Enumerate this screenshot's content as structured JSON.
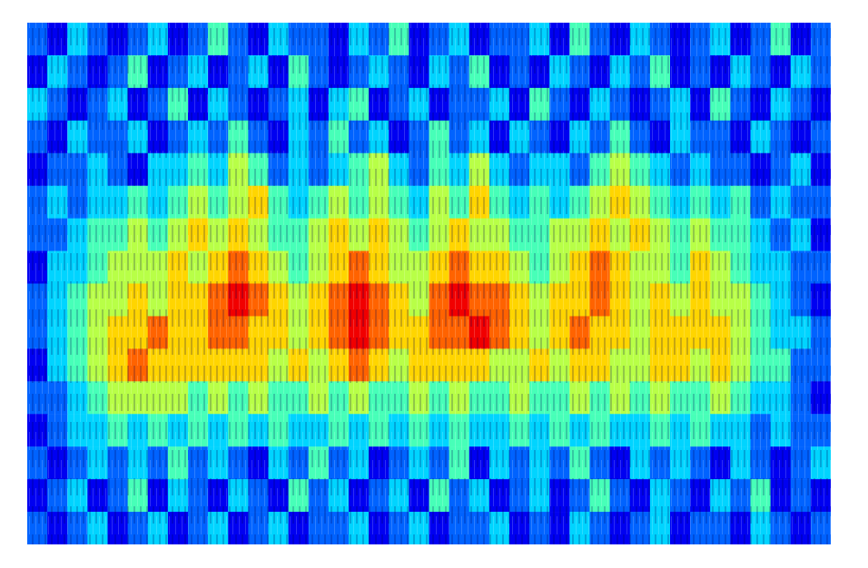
{
  "chart_data": {
    "type": "heatmap",
    "tick_labels": false,
    "color_range": [
      0,
      9
    ],
    "cells": [
      [
        2,
        1,
        3,
        2,
        1,
        2,
        3,
        1,
        2,
        4,
        2,
        1,
        3,
        2,
        2,
        1,
        3,
        2,
        4,
        1,
        2,
        3,
        1,
        2,
        2,
        3,
        1,
        4,
        2,
        1,
        3,
        2,
        1,
        2,
        3,
        1,
        2,
        4,
        1,
        2
      ],
      [
        1,
        3,
        2,
        1,
        2,
        4,
        1,
        2,
        3,
        1,
        2,
        3,
        1,
        4,
        2,
        1,
        2,
        3,
        2,
        1,
        3,
        2,
        4,
        1,
        2,
        1,
        3,
        2,
        1,
        3,
        2,
        4,
        1,
        2,
        1,
        3,
        2,
        1,
        3,
        2
      ],
      [
        3,
        2,
        1,
        2,
        3,
        1,
        2,
        4,
        1,
        3,
        2,
        1,
        2,
        3,
        1,
        3,
        4,
        1,
        2,
        3,
        1,
        2,
        2,
        3,
        1,
        4,
        2,
        1,
        3,
        2,
        1,
        2,
        3,
        1,
        4,
        2,
        1,
        3,
        2,
        1
      ],
      [
        2,
        1,
        3,
        2,
        2,
        3,
        1,
        2,
        3,
        2,
        4,
        2,
        1,
        3,
        2,
        4,
        2,
        3,
        1,
        2,
        4,
        2,
        3,
        1,
        3,
        2,
        1,
        3,
        2,
        4,
        2,
        1,
        3,
        2,
        2,
        1,
        3,
        2,
        1,
        2
      ],
      [
        1,
        2,
        2,
        3,
        2,
        1,
        3,
        3,
        4,
        3,
        5,
        4,
        2,
        3,
        2,
        3,
        4,
        5,
        3,
        2,
        4,
        3,
        5,
        3,
        2,
        3,
        3,
        2,
        4,
        5,
        4,
        3,
        2,
        3,
        2,
        2,
        1,
        2,
        3,
        1
      ],
      [
        2,
        3,
        2,
        3,
        3,
        4,
        3,
        4,
        5,
        4,
        5,
        6,
        4,
        3,
        4,
        5,
        4,
        5,
        4,
        3,
        5,
        4,
        6,
        4,
        3,
        4,
        3,
        4,
        5,
        6,
        5,
        4,
        3,
        4,
        3,
        4,
        2,
        3,
        2,
        2
      ],
      [
        2,
        2,
        3,
        4,
        4,
        5,
        4,
        5,
        6,
        5,
        6,
        5,
        4,
        4,
        5,
        6,
        5,
        6,
        5,
        4,
        5,
        6,
        5,
        5,
        4,
        4,
        5,
        5,
        6,
        5,
        6,
        5,
        4,
        5,
        4,
        4,
        3,
        2,
        3,
        1
      ],
      [
        1,
        3,
        3,
        4,
        5,
        5,
        5,
        6,
        5,
        6,
        7,
        6,
        5,
        4,
        5,
        6,
        7,
        6,
        5,
        5,
        6,
        7,
        6,
        6,
        5,
        4,
        5,
        6,
        7,
        6,
        5,
        5,
        4,
        6,
        5,
        4,
        3,
        3,
        2,
        2
      ],
      [
        2,
        3,
        4,
        5,
        5,
        6,
        5,
        6,
        6,
        7,
        8,
        7,
        6,
        5,
        6,
        7,
        8,
        7,
        6,
        5,
        7,
        8,
        7,
        7,
        6,
        5,
        6,
        6,
        7,
        6,
        5,
        6,
        5,
        6,
        5,
        5,
        4,
        3,
        2,
        1
      ],
      [
        2,
        3,
        4,
        5,
        6,
        6,
        7,
        6,
        6,
        7,
        7,
        6,
        6,
        5,
        6,
        7,
        8,
        7,
        6,
        6,
        7,
        7,
        8,
        7,
        6,
        5,
        6,
        7,
        6,
        6,
        5,
        6,
        6,
        6,
        6,
        5,
        4,
        3,
        3,
        2
      ],
      [
        1,
        3,
        4,
        5,
        6,
        7,
        6,
        6,
        6,
        6,
        6,
        6,
        5,
        6,
        5,
        6,
        7,
        6,
        5,
        6,
        6,
        6,
        6,
        5,
        5,
        6,
        5,
        6,
        6,
        5,
        5,
        6,
        6,
        5,
        6,
        5,
        4,
        4,
        2,
        2
      ],
      [
        2,
        2,
        3,
        4,
        5,
        5,
        5,
        5,
        4,
        5,
        4,
        5,
        4,
        4,
        5,
        4,
        5,
        4,
        4,
        5,
        4,
        5,
        4,
        4,
        5,
        4,
        4,
        5,
        4,
        5,
        4,
        5,
        4,
        4,
        5,
        4,
        3,
        3,
        2,
        1
      ],
      [
        1,
        2,
        3,
        3,
        4,
        3,
        4,
        3,
        4,
        3,
        4,
        3,
        4,
        3,
        3,
        4,
        3,
        4,
        3,
        4,
        3,
        4,
        3,
        3,
        4,
        3,
        4,
        3,
        4,
        3,
        3,
        4,
        3,
        4,
        3,
        3,
        2,
        3,
        2,
        2
      ],
      [
        2,
        1,
        2,
        3,
        2,
        3,
        2,
        4,
        2,
        3,
        2,
        1,
        3,
        2,
        4,
        2,
        3,
        1,
        2,
        3,
        2,
        4,
        1,
        3,
        2,
        3,
        2,
        4,
        2,
        1,
        3,
        2,
        3,
        2,
        1,
        3,
        2,
        1,
        2,
        3
      ],
      [
        1,
        2,
        3,
        1,
        2,
        4,
        1,
        3,
        2,
        1,
        3,
        2,
        1,
        4,
        2,
        3,
        1,
        2,
        3,
        1,
        4,
        2,
        3,
        1,
        2,
        3,
        1,
        2,
        4,
        2,
        1,
        3,
        2,
        1,
        3,
        2,
        4,
        1,
        2,
        1
      ],
      [
        2,
        1,
        2,
        3,
        1,
        2,
        3,
        1,
        2,
        3,
        1,
        2,
        3,
        1,
        2,
        2,
        3,
        1,
        2,
        3,
        1,
        2,
        2,
        3,
        1,
        2,
        1,
        3,
        2,
        1,
        2,
        3,
        1,
        2,
        2,
        1,
        3,
        2,
        1,
        2
      ]
    ]
  }
}
